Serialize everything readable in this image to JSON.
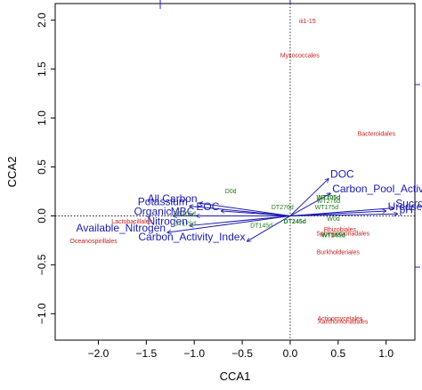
{
  "chart_data": {
    "type": "scatter",
    "title": "",
    "xlabel": "CCA1",
    "ylabel": "CCA2",
    "xlim": [
      -2.45,
      1.3
    ],
    "ylim": [
      -1.27,
      2.17
    ],
    "xticks": [
      -2.0,
      -1.5,
      -1.0,
      -0.5,
      0.0,
      0.5,
      1.0
    ],
    "yticks": [
      -1.0,
      -0.5,
      0.0,
      0.5,
      1.0,
      1.5,
      2.0
    ],
    "xtick_labels": [
      "−2.0",
      "−1.5",
      "−1.0",
      "−0.5",
      "0.0",
      "0.5",
      "1.0"
    ],
    "ytick_labels": [
      "−1.0",
      "−0.5",
      "0.0",
      "0.5",
      "1.0",
      "1.5",
      "2.0"
    ],
    "reference_lines": {
      "x": 0,
      "y": 0,
      "style": "dotted"
    },
    "env_vectors": [
      {
        "name": "DOC",
        "x": 0.4,
        "y": 0.38
      },
      {
        "name": "Carbon_Pool_Activity",
        "x": 0.42,
        "y": 0.23
      },
      {
        "name": "Sucrose",
        "x": 1.08,
        "y": 0.08
      },
      {
        "name": "Urease",
        "x": 1.0,
        "y": 0.05
      },
      {
        "name": "pH",
        "x": 1.12,
        "y": 0.02
      },
      {
        "name": "All Carbon",
        "x": -0.95,
        "y": 0.13
      },
      {
        "name": "Potassium",
        "x": -1.05,
        "y": 0.1
      },
      {
        "name": "EOC",
        "x": -0.72,
        "y": 0.05
      },
      {
        "name": "Organic",
        "x": -1.22,
        "y": 0.0
      },
      {
        "name": "MBC",
        "x": -0.98,
        "y": 0.0
      },
      {
        "name": "Nitrogen",
        "x": -1.05,
        "y": -0.1
      },
      {
        "name": "Available_Nitrogen",
        "x": -1.28,
        "y": -0.17
      },
      {
        "name": "Carbon_Activity_Index",
        "x": -0.45,
        "y": -0.26
      }
    ],
    "taxa": [
      {
        "name": "iii1-15",
        "x": 0.18,
        "y": 1.97
      },
      {
        "name": "Myxococcales",
        "x": 0.1,
        "y": 1.62
      },
      {
        "name": "Bacteroidales",
        "x": 0.9,
        "y": 0.82
      },
      {
        "name": "Lactobacillales",
        "x": -1.65,
        "y": -0.08
      },
      {
        "name": "Oceanospirillales",
        "x": -2.05,
        "y": -0.28
      },
      {
        "name": "Rhizobiales",
        "x": 0.52,
        "y": -0.16
      },
      {
        "name": "Sphingomonadales",
        "x": 0.55,
        "y": -0.2
      },
      {
        "name": "Burkholderiales",
        "x": 0.5,
        "y": -0.39
      },
      {
        "name": "Actinomycetales",
        "x": 0.52,
        "y": -1.07
      },
      {
        "name": "Xanthomonadales",
        "x": 0.55,
        "y": -1.1
      }
    ],
    "samples": [
      {
        "name": "D0d",
        "x": -0.62,
        "y": 0.23,
        "bold": false
      },
      {
        "name": "DT105d",
        "x": -1.1,
        "y": 0.0,
        "bold": false
      },
      {
        "name": "DT175d",
        "x": -1.1,
        "y": -0.1,
        "bold": false
      },
      {
        "name": "DT276d",
        "x": -0.08,
        "y": 0.07,
        "bold": false
      },
      {
        "name": "DT145d",
        "x": -0.3,
        "y": -0.12,
        "bold": false
      },
      {
        "name": "DT245d",
        "x": 0.05,
        "y": -0.08,
        "bold": true
      },
      {
        "name": "WT105d",
        "x": 0.4,
        "y": 0.17,
        "bold": true
      },
      {
        "name": "WT276d",
        "x": 0.4,
        "y": 0.13,
        "bold": false
      },
      {
        "name": "WT175d",
        "x": 0.38,
        "y": 0.07,
        "bold": false
      },
      {
        "name": "W0d",
        "x": 0.45,
        "y": -0.05,
        "bold": false
      },
      {
        "name": "WT245d",
        "x": 0.45,
        "y": -0.22,
        "bold": true
      }
    ]
  },
  "colors": {
    "env_vector": "#1a1ab0",
    "taxon": "#c8201e",
    "sample": "#1f7a1f",
    "axis_frame": "#000000",
    "secondary_axis": "#2222cc"
  }
}
